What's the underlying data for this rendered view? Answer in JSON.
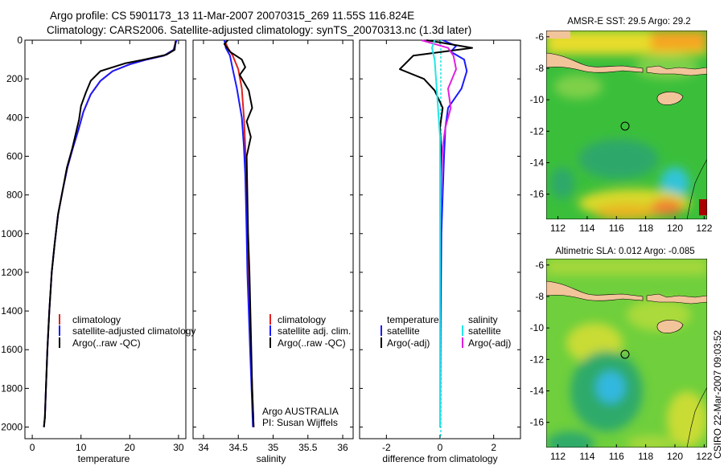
{
  "header": {
    "line1": "Argo profile: CS 5901173_13 11-Mar-2007 20070315_269 11.55S 116.824E",
    "line2": "Climatology: CARS2006. Satellite-adjusted climatology: synTS_20070313.nc (1.3d later)"
  },
  "footer": {
    "credit": "CSIRO 22-Mar-2007 09:03:52",
    "argo_label": "Argo AUSTRALIA",
    "pi_label": "PI: Susan Wijffels"
  },
  "colors": {
    "climatology": "#e02020",
    "satellite": "#1a1aff",
    "argo": "#000000",
    "salinity_satellite": "#22e6e6",
    "salinity_argo": "#e020e0",
    "land": "#f2c49a"
  },
  "chart_data": [
    {
      "type": "line",
      "xlabel": "temperature",
      "ylabel": "",
      "xlim": [
        -1.5,
        31.5
      ],
      "ylim": [
        2060,
        0
      ],
      "xticks": [
        0,
        10,
        20,
        30
      ],
      "yticks": [
        0,
        200,
        400,
        600,
        800,
        1000,
        1200,
        1400,
        1600,
        1800,
        2000
      ],
      "legend": [
        "climatology",
        "satellite-adjusted climatology",
        "Argo(..raw -QC)"
      ],
      "series": [
        {
          "name": "climatology",
          "color": "#e02020",
          "x": [
            29.5,
            29,
            27,
            23.5,
            20,
            16.5,
            14,
            12,
            10.5,
            9.5,
            8.3,
            7.2,
            6.2,
            5.3,
            4.6,
            4.0,
            3.5,
            3.1,
            2.8,
            2.6,
            2.4
          ],
          "y": [
            0,
            50,
            80,
            100,
            125,
            160,
            210,
            280,
            370,
            460,
            560,
            660,
            780,
            900,
            1050,
            1200,
            1400,
            1600,
            1800,
            1950,
            2000
          ]
        },
        {
          "name": "satellite-adjusted climatology",
          "color": "#1a1aff",
          "x": [
            29.6,
            29,
            27,
            23.5,
            20,
            16.5,
            14,
            12,
            10.5,
            9.5,
            8.3,
            7.2,
            6.2,
            5.3,
            4.6,
            4.0,
            3.5,
            3.1,
            2.8,
            2.6,
            2.4
          ],
          "y": [
            0,
            50,
            80,
            100,
            125,
            160,
            210,
            280,
            370,
            460,
            560,
            660,
            780,
            900,
            1050,
            1200,
            1400,
            1600,
            1800,
            1950,
            2000
          ]
        },
        {
          "name": "Argo(..raw -QC)",
          "color": "#000000",
          "x": [
            29.4,
            29.2,
            27.5,
            23,
            19,
            14,
            12,
            11,
            10,
            9.6,
            8.2,
            7.1,
            6.2,
            5.3,
            4.6,
            4.0,
            3.5,
            3.1,
            2.8,
            2.6,
            2.4
          ],
          "y": [
            5,
            50,
            75,
            100,
            120,
            160,
            210,
            270,
            340,
            410,
            560,
            660,
            780,
            900,
            1050,
            1200,
            1400,
            1600,
            1800,
            1950,
            2000
          ]
        }
      ]
    },
    {
      "type": "line",
      "xlabel": "salinity",
      "ylabel": "",
      "xlim": [
        33.85,
        36.15
      ],
      "ylim": [
        2060,
        0
      ],
      "xticks": [
        34,
        34.5,
        35,
        35.5,
        36
      ],
      "legend": [
        "climatology",
        "satellite adj. clim.",
        "Argo(..raw -QC)"
      ],
      "series": [
        {
          "name": "climatology",
          "color": "#e02020",
          "x": [
            34.3,
            34.35,
            34.42,
            34.5,
            34.55,
            34.58,
            34.6,
            34.61,
            34.62,
            34.63,
            34.64,
            34.66,
            34.68,
            34.7,
            34.72
          ],
          "y": [
            0,
            40,
            80,
            150,
            250,
            400,
            550,
            700,
            850,
            1000,
            1200,
            1400,
            1600,
            1800,
            2000
          ]
        },
        {
          "name": "satellite adj. clim.",
          "color": "#1a1aff",
          "x": [
            34.3,
            34.32,
            34.38,
            34.42,
            34.48,
            34.55,
            34.58,
            34.6,
            34.61,
            34.62,
            34.63,
            34.65,
            34.67,
            34.69,
            34.71
          ],
          "y": [
            0,
            40,
            80,
            150,
            250,
            400,
            550,
            700,
            850,
            1000,
            1200,
            1400,
            1600,
            1800,
            2000
          ]
        },
        {
          "name": "Argo(..raw -QC)",
          "color": "#000000",
          "x": [
            34.35,
            34.3,
            34.38,
            34.55,
            34.6,
            34.52,
            34.65,
            34.7,
            34.62,
            34.68,
            34.62,
            34.63,
            34.64,
            34.66,
            34.68,
            34.7,
            34.72
          ],
          "y": [
            0,
            20,
            60,
            100,
            140,
            180,
            260,
            350,
            420,
            500,
            600,
            800,
            1000,
            1200,
            1500,
            1800,
            2000
          ]
        }
      ]
    },
    {
      "type": "line",
      "xlabel": "difference from climatology",
      "ylabel": "",
      "xlim": [
        -3,
        3
      ],
      "ylim": [
        2060,
        0
      ],
      "xticks": [
        -2,
        0,
        2
      ],
      "legend": [
        "temperature",
        "satellite",
        "Argo(-adj)",
        "salinity",
        "satellite",
        "Argo(-adj)"
      ],
      "series": [
        {
          "name": "satellite",
          "color": "#1a1aff",
          "x": [
            0.1,
            0.6,
            0.4,
            0.9,
            1.0,
            0.8,
            0.3,
            0.2,
            0.15,
            0.1,
            0.05,
            0.02,
            0.0
          ],
          "y": [
            0,
            30,
            60,
            100,
            160,
            250,
            350,
            450,
            600,
            800,
            1000,
            1500,
            2000
          ]
        },
        {
          "name": "Argo(-adj)",
          "color": "#000000",
          "x": [
            -0.5,
            1.2,
            -1.0,
            -1.5,
            -0.6,
            -0.2,
            0.1,
            0.0,
            0.05,
            0.0,
            0.0,
            0.0
          ],
          "y": [
            0,
            40,
            80,
            150,
            200,
            260,
            350,
            450,
            600,
            800,
            1200,
            2000
          ]
        },
        {
          "name": "Argo(-adj)",
          "color": "#e020e0",
          "x": [
            -0.7,
            0.3,
            0.5,
            0.6,
            0.3,
            0.4,
            0.2,
            0.1,
            0.05,
            0.0,
            0.0
          ],
          "y": [
            0,
            40,
            80,
            150,
            250,
            350,
            450,
            550,
            700,
            1000,
            2000
          ]
        },
        {
          "name": "satellite",
          "color": "#22e6e6",
          "x": [
            -0.2,
            -0.3,
            -0.2,
            -0.15,
            -0.1,
            -0.05,
            0.0,
            0.0,
            0.0
          ],
          "y": [
            0,
            40,
            100,
            200,
            300,
            400,
            500,
            1000,
            2000
          ]
        }
      ]
    },
    {
      "type": "heatmap",
      "title": "AMSR-E SST: 29.5 Argo: 29.2",
      "xlim": [
        111.2,
        122.2
      ],
      "ylim": [
        -17.6,
        -5.6
      ],
      "xticks": [
        112,
        114,
        116,
        118,
        120,
        122
      ],
      "yticks": [
        -6,
        -8,
        -10,
        -12,
        -14,
        -16
      ],
      "marker": {
        "lon": 116.824,
        "lat": -11.55
      }
    },
    {
      "type": "heatmap",
      "title": "Altimetric SLA: 0.012 Argo: -0.085",
      "xlim": [
        111.2,
        122.2
      ],
      "ylim": [
        -17.6,
        -5.6
      ],
      "xticks": [
        112,
        114,
        116,
        118,
        120,
        122
      ],
      "yticks": [
        -6,
        -8,
        -10,
        -12,
        -14,
        -16
      ],
      "marker": {
        "lon": 116.824,
        "lat": -11.55
      }
    }
  ]
}
